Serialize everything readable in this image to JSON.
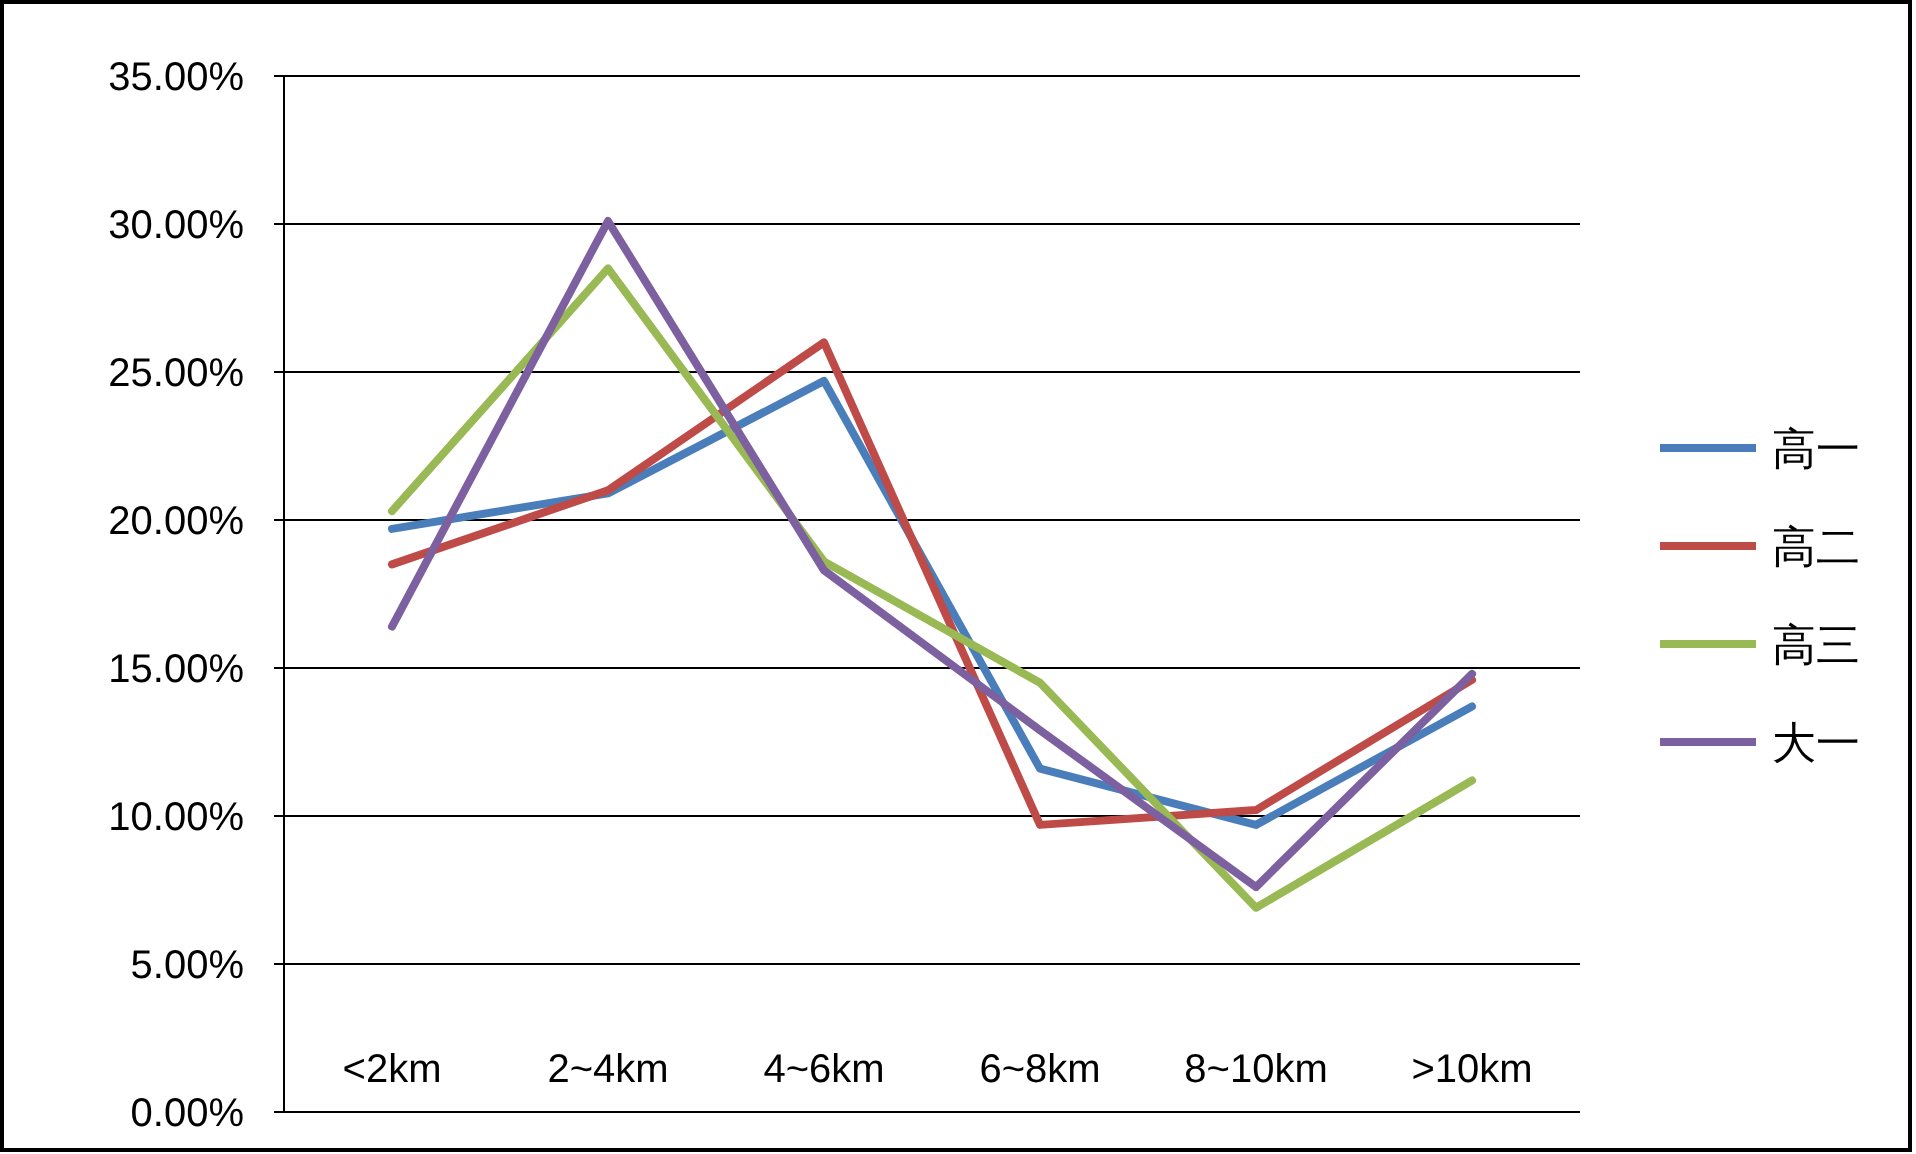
{
  "chart_data": {
    "type": "line",
    "categories": [
      "<2km",
      "2~4km",
      "4~6km",
      "6~8km",
      "8~10km",
      ">10km"
    ],
    "series": [
      {
        "name": "高一",
        "color": "#4a7ebb",
        "values": [
          19.7,
          20.9,
          24.7,
          11.6,
          9.7,
          13.7
        ]
      },
      {
        "name": "高二",
        "color": "#be4b48",
        "values": [
          18.5,
          21.0,
          26.0,
          9.7,
          10.2,
          14.6
        ]
      },
      {
        "name": "高三",
        "color": "#98b954",
        "values": [
          20.3,
          28.5,
          18.6,
          14.5,
          6.9,
          11.2
        ]
      },
      {
        "name": "大一",
        "color": "#7d60a0",
        "values": [
          16.4,
          30.1,
          18.3,
          12.9,
          7.6,
          14.8
        ]
      }
    ],
    "ylim": [
      0,
      35
    ],
    "yticks": [
      {
        "value": 0,
        "label": "0.00%"
      },
      {
        "value": 5,
        "label": "5.00%"
      },
      {
        "value": 10,
        "label": "10.00%"
      },
      {
        "value": 15,
        "label": "15.00%"
      },
      {
        "value": 20,
        "label": "20.00%"
      },
      {
        "value": 25,
        "label": "25.00%"
      },
      {
        "value": 30,
        "label": "30.00%"
      },
      {
        "value": 35,
        "label": "35.00%"
      }
    ],
    "grid": "y",
    "legend": "right",
    "marker": "none",
    "line_style": "solid"
  }
}
